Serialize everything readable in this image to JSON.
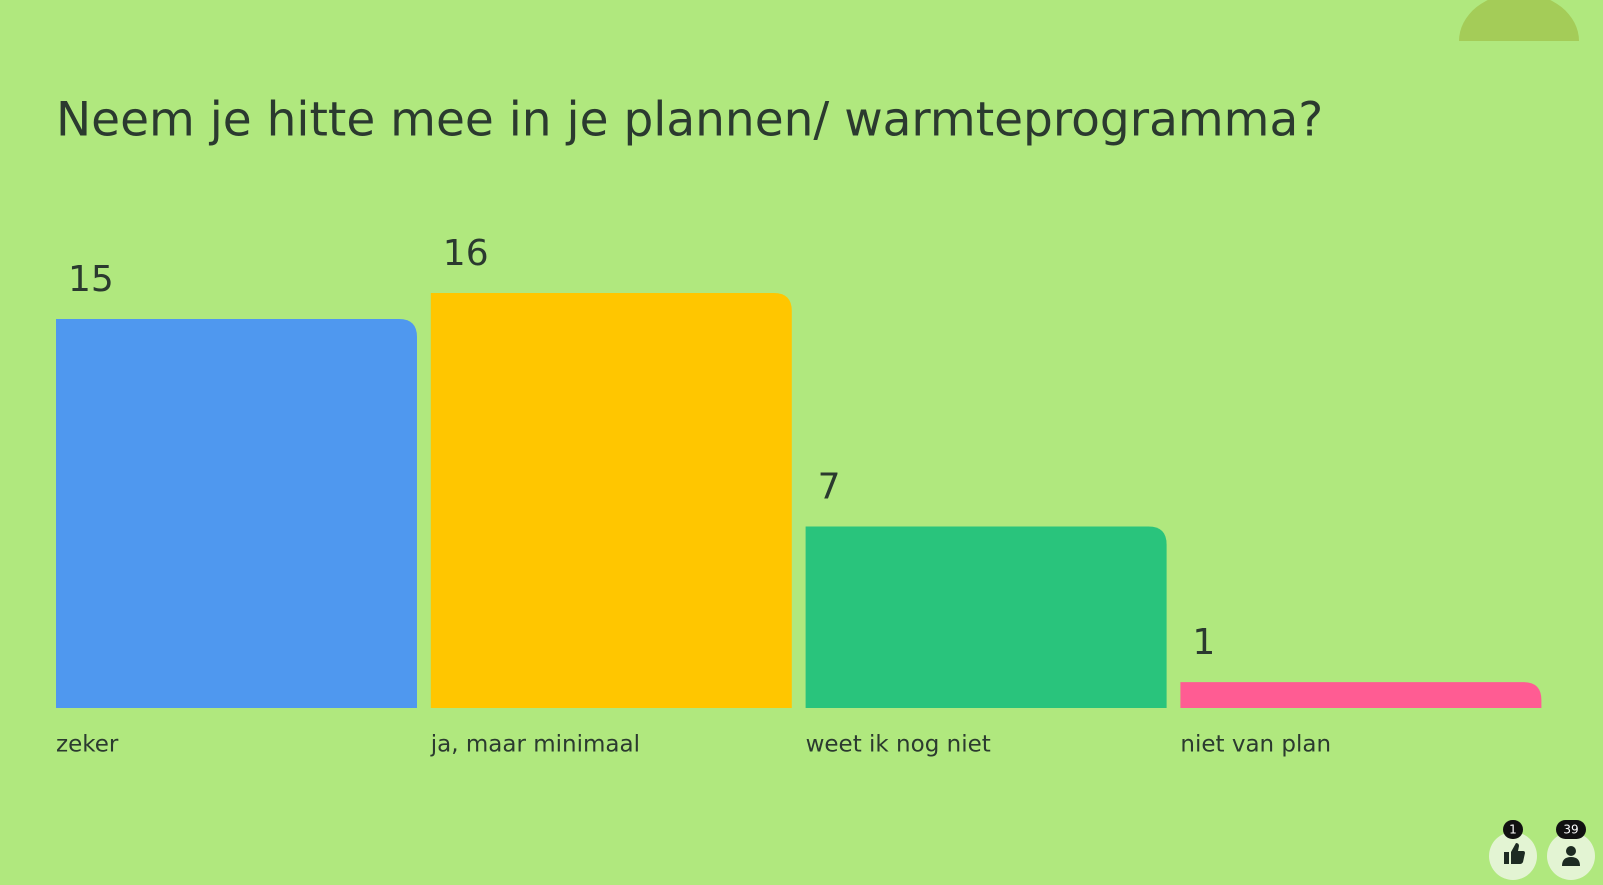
{
  "chart_data": {
    "type": "bar",
    "title": "Neem je hitte mee in je plannen/ warmteprogramma?",
    "categories": [
      "zeker",
      "ja, maar minimaal",
      "weet ik nog niet",
      "niet van plan"
    ],
    "values": [
      15,
      16,
      7,
      1
    ],
    "colors": [
      "#4f98ef",
      "#ffc600",
      "#29c47c",
      "#ff5c93"
    ]
  },
  "footer": {
    "reactions": 1,
    "participants": 39
  }
}
